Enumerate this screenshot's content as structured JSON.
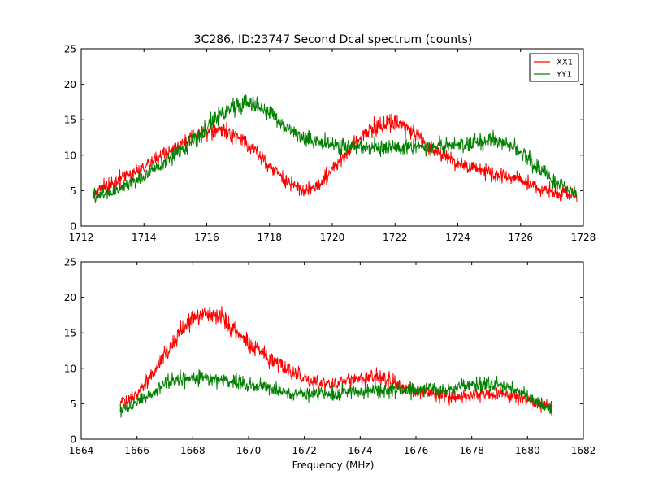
{
  "figure": {
    "title": "3C286, ID:23747 Second Dcal spectrum (counts)",
    "xlabel": "Frequency (MHz)"
  },
  "chart_data": [
    {
      "type": "line",
      "title": "3C286, ID:23747 Second Dcal spectrum (counts)",
      "xlabel": "",
      "ylabel": "",
      "xlim": [
        1712,
        1728
      ],
      "ylim": [
        0,
        25
      ],
      "xticks": [
        1712,
        1714,
        1716,
        1718,
        1720,
        1722,
        1724,
        1726,
        1728
      ],
      "yticks": [
        0,
        5,
        10,
        15,
        20,
        25
      ],
      "grid": false,
      "legend": {
        "placement": "top-right",
        "entries": [
          "XX1",
          "YY1"
        ]
      },
      "noise": 1.1,
      "series": [
        {
          "name": "XX1",
          "color": "#ff0000",
          "x": [
            1712.4,
            1713.0,
            1714.0,
            1715.0,
            1715.8,
            1716.5,
            1717.0,
            1717.5,
            1718.0,
            1718.5,
            1719.0,
            1719.5,
            1720.0,
            1720.5,
            1721.0,
            1721.5,
            1722.0,
            1722.5,
            1723.0,
            1723.5,
            1724.0,
            1724.5,
            1725.0,
            1725.5,
            1726.0,
            1726.5,
            1727.0,
            1727.8
          ],
          "y": [
            4.8,
            6.0,
            8.5,
            11.0,
            13.0,
            13.5,
            12.5,
            10.8,
            8.5,
            6.5,
            5.0,
            5.5,
            8.0,
            10.5,
            13.0,
            14.3,
            14.8,
            13.5,
            11.5,
            10.0,
            9.0,
            8.0,
            7.5,
            7.0,
            6.5,
            5.5,
            5.0,
            4.2
          ]
        },
        {
          "name": "YY1",
          "color": "#008000",
          "x": [
            1712.4,
            1713.0,
            1714.0,
            1715.0,
            1715.8,
            1716.5,
            1717.0,
            1717.5,
            1718.0,
            1718.5,
            1719.0,
            1719.5,
            1720.0,
            1721.0,
            1722.0,
            1723.0,
            1724.0,
            1725.0,
            1725.5,
            1726.0,
            1726.5,
            1727.0,
            1727.8
          ],
          "y": [
            4.2,
            4.8,
            7.0,
            10.0,
            13.0,
            16.0,
            17.2,
            17.3,
            16.0,
            14.0,
            12.5,
            12.0,
            11.5,
            11.0,
            11.0,
            11.2,
            11.5,
            12.0,
            11.8,
            10.5,
            8.5,
            6.5,
            4.5
          ]
        }
      ]
    },
    {
      "type": "line",
      "title": "",
      "xlabel": "Frequency (MHz)",
      "ylabel": "",
      "xlim": [
        1664,
        1682
      ],
      "ylim": [
        0,
        25
      ],
      "xticks": [
        1664,
        1666,
        1668,
        1670,
        1672,
        1674,
        1676,
        1678,
        1680,
        1682
      ],
      "yticks": [
        0,
        5,
        10,
        15,
        20,
        25
      ],
      "grid": false,
      "noise": 1.1,
      "series": [
        {
          "name": "XX1",
          "color": "#ff0000",
          "x": [
            1665.4,
            1666.0,
            1666.5,
            1667.0,
            1667.5,
            1668.0,
            1668.5,
            1669.0,
            1669.5,
            1670.0,
            1670.5,
            1671.0,
            1671.5,
            1672.0,
            1672.5,
            1673.0,
            1673.5,
            1674.0,
            1674.5,
            1675.0,
            1675.5,
            1676.0,
            1676.5,
            1677.0,
            1677.5,
            1678.0,
            1678.5,
            1679.0,
            1679.5,
            1680.0,
            1680.5,
            1680.9
          ],
          "y": [
            5.0,
            6.5,
            9.0,
            12.0,
            15.0,
            17.0,
            17.8,
            17.3,
            15.5,
            13.5,
            12.0,
            10.8,
            9.6,
            8.6,
            8.0,
            7.8,
            8.0,
            8.5,
            9.0,
            8.5,
            7.5,
            6.8,
            6.5,
            6.2,
            6.0,
            6.1,
            6.3,
            6.3,
            6.0,
            5.5,
            5.0,
            4.8
          ]
        },
        {
          "name": "YY1",
          "color": "#008000",
          "x": [
            1665.4,
            1666.0,
            1666.5,
            1667.0,
            1667.5,
            1668.0,
            1668.5,
            1669.0,
            1669.5,
            1670.0,
            1670.5,
            1671.0,
            1671.5,
            1672.0,
            1673.0,
            1674.0,
            1675.0,
            1676.0,
            1677.0,
            1678.0,
            1678.5,
            1679.0,
            1679.5,
            1680.0,
            1680.5,
            1680.9
          ],
          "y": [
            4.0,
            5.2,
            6.5,
            7.8,
            8.5,
            8.8,
            8.6,
            8.3,
            8.0,
            7.8,
            7.5,
            7.0,
            6.6,
            6.4,
            6.5,
            6.8,
            7.0,
            7.0,
            7.0,
            7.6,
            7.8,
            7.5,
            7.0,
            6.0,
            5.0,
            4.3
          ]
        }
      ]
    }
  ]
}
